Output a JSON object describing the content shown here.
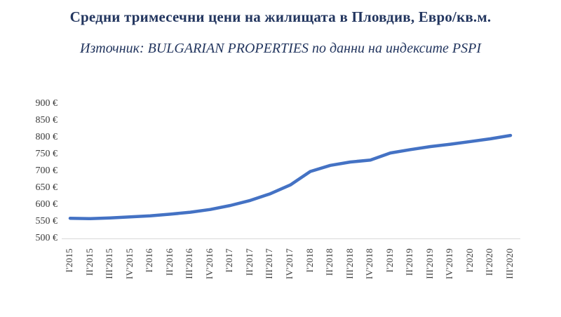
{
  "header": {
    "title": "Средни тримесечни цени на жилищата в Пловдив, Евро/кв.м.",
    "subtitle": "Източник: BULGARIAN PROPERTIES по данни на индексите PSPI"
  },
  "colors": {
    "line": "#4472c4",
    "axis_line": "#d9d9d9",
    "axis_text": "#3b3b3b",
    "title_text": "#23365f"
  },
  "chart_data": {
    "type": "line",
    "title": "Средни тримесечни цени на жилищата в Пловдив, Евро/кв.м.",
    "subtitle": "Източник: BULGARIAN PROPERTIES по данни на индексите PSPI",
    "categories": [
      "I'2015",
      "II'2015",
      "III'2015",
      "IV'2015",
      "I'2016",
      "II'2016",
      "III'2016",
      "IV'2016",
      "I'2017",
      "II'2017",
      "III'2017",
      "IV'2017",
      "I'2018",
      "II'2018",
      "III'2018",
      "IV'2018",
      "I'2019",
      "II'2019",
      "III'2019",
      "IV'2019",
      "I'2020",
      "II'2020",
      "III'2020"
    ],
    "values": [
      560,
      559,
      561,
      564,
      567,
      572,
      578,
      586,
      598,
      613,
      633,
      659,
      699,
      717,
      727,
      733,
      754,
      764,
      773,
      780,
      788,
      796,
      806
    ],
    "xlabel": "",
    "ylabel": "",
    "ylim": [
      500,
      900
    ],
    "ytick_step": 50,
    "ytick_suffix": " €",
    "grid": false,
    "legend": "none"
  }
}
